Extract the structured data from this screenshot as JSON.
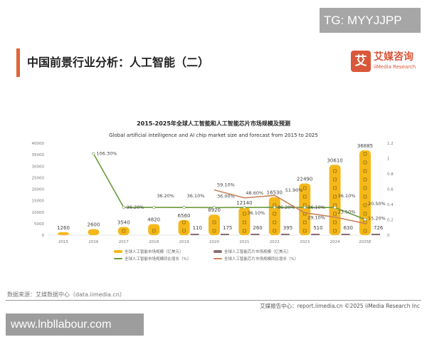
{
  "watermark_top": "TG: MYYJJPP",
  "watermark_bottom": "www.lnbllabour.com",
  "page_title": "中国前景行业分析：人工智能（二）",
  "logo": {
    "cn": "艾媒咨询",
    "en": "iiMedia Research",
    "mark": "艾"
  },
  "source": "数据来源：艾媒数据中心（data.iimedia.cn）",
  "footer": "艾媒报告中心：report.iimedia.cn    ©2025  iiMedia Research  Inc",
  "colors": {
    "ai_bar": "#F5B819",
    "chip_bar": "#8a6f73",
    "ai_growth": "#6a9a3a",
    "chip_growth": "#c8825a",
    "accent": "#e0643a"
  },
  "chart_data": {
    "type": "bar",
    "title": "2015-2025年全球人工智能和人工智能芯片市场规模及预测",
    "subtitle": "Global artificial intelligence and AI chip market size and forecast from 2015 to 2025",
    "categories": [
      "2015",
      "2016",
      "2017",
      "2018",
      "2019",
      "2020",
      "2021",
      "2022",
      "2023",
      "2024",
      "2025E"
    ],
    "ylim": [
      0,
      40000
    ],
    "yticks": [
      "0",
      "5000",
      "10000",
      "15000",
      "20000",
      "25000",
      "30000",
      "35000",
      "40000"
    ],
    "y2lim": [
      0,
      1.2
    ],
    "y2ticks": [
      "0",
      "0.2",
      "0.4",
      "0.6",
      "0.8",
      "1",
      "1.2"
    ],
    "grid": false,
    "legend_placement": "bottom",
    "series": [
      {
        "name": "全球人工智能市场规模（亿美元）",
        "kind": "bar",
        "values": [
          1260,
          2600,
          3540,
          4820,
          6560,
          8920,
          12140,
          16530,
          22490,
          30610,
          36885
        ],
        "labels": [
          "1260",
          "2600",
          "3540",
          "4820",
          "6560",
          "8920",
          "12140",
          "16530",
          "22490",
          "30610",
          "36885"
        ]
      },
      {
        "name": "全球人工智能芯片市场规模（亿美元）",
        "kind": "bar",
        "values": [
          null,
          null,
          null,
          null,
          110,
          175,
          260,
          395,
          510,
          630,
          726
        ],
        "labels": [
          "",
          "",
          "",
          "",
          "110",
          "175",
          "260",
          "395",
          "510",
          "630",
          "726"
        ]
      },
      {
        "name": "全球人工智能市场规模同比增长（%）",
        "kind": "line",
        "axis": "right",
        "values": [
          null,
          1.063,
          0.362,
          0.362,
          0.361,
          0.36,
          0.361,
          0.362,
          0.361,
          0.361,
          0.205
        ],
        "labels": [
          "",
          "106.30%",
          "36.20%",
          "36.20%",
          "36.10%",
          "36.00%",
          "36.10%",
          "36.20%",
          "36.10%",
          "36.10%",
          "20.50%"
        ]
      },
      {
        "name": "全球人工智能芯片市场规模同比增长（%）",
        "kind": "line",
        "axis": "right",
        "values": [
          null,
          null,
          null,
          null,
          null,
          0.591,
          0.486,
          0.519,
          0.291,
          0.235,
          0.152
        ],
        "labels": [
          "",
          "",
          "",
          "",
          "",
          "59.10%",
          "48.60%",
          "51.90%",
          "29.10%",
          "23.50%",
          "15.20%"
        ]
      }
    ]
  }
}
